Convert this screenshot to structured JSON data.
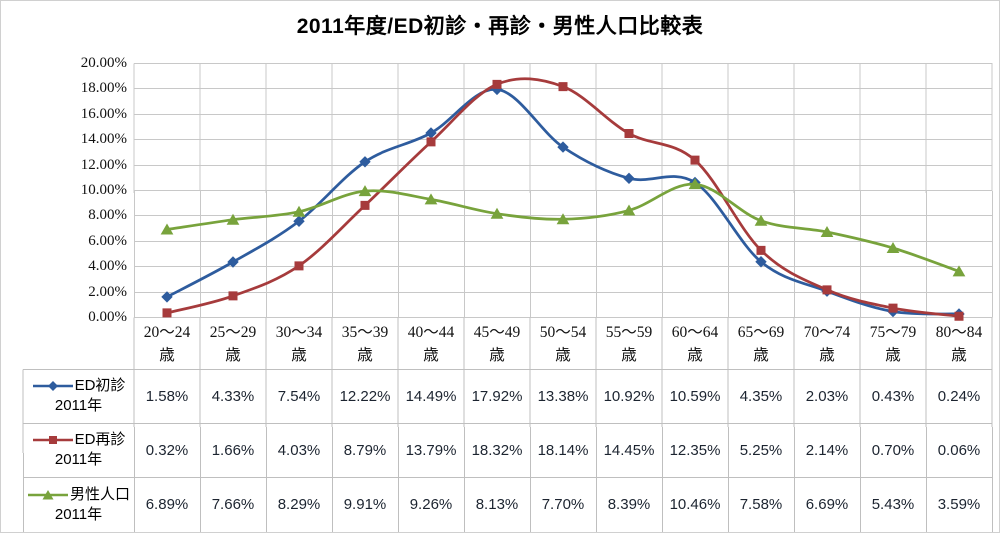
{
  "chart_data": {
    "type": "line",
    "smooth": true,
    "title": "2011年度/ED初診・再診・男性人口比較表",
    "categories": [
      "20〜24歳",
      "25〜29歳",
      "30〜34歳",
      "35〜39歳",
      "40〜44歳",
      "45〜49歳",
      "50〜54歳",
      "55〜59歳",
      "60〜64歳",
      "65〜69歳",
      "70〜74歳",
      "75〜79歳",
      "80〜84歳"
    ],
    "category_suffix": "歳",
    "y_axis": {
      "min": 0,
      "max": 20,
      "step": 2,
      "grid": true,
      "tick_labels": [
        "0.00%",
        "2.00%",
        "4.00%",
        "6.00%",
        "8.00%",
        "10.00%",
        "12.00%",
        "14.00%",
        "16.00%",
        "18.00%",
        "20.00%"
      ]
    },
    "legend_position": "table-left",
    "value_suffix": "%",
    "series": [
      {
        "name": "ED初診 2011年",
        "name_lines": [
          "ED初診",
          "2011年"
        ],
        "marker": "diamond",
        "color": "#2E5C9E",
        "values": [
          1.58,
          4.33,
          7.54,
          12.22,
          14.49,
          17.92,
          13.38,
          10.92,
          10.59,
          4.35,
          2.03,
          0.43,
          0.24
        ]
      },
      {
        "name": "ED再診 2011年",
        "name_lines": [
          "ED再診",
          "2011年"
        ],
        "marker": "square",
        "color": "#A63B3C",
        "values": [
          0.32,
          1.66,
          4.03,
          8.79,
          13.79,
          18.32,
          18.14,
          14.45,
          12.35,
          5.25,
          2.14,
          0.7,
          0.06
        ]
      },
      {
        "name": "男性人口 2011年",
        "name_lines": [
          "男性人口",
          "2011年"
        ],
        "marker": "triangle",
        "color": "#78A33C",
        "values": [
          6.89,
          7.66,
          8.29,
          9.91,
          9.26,
          8.13,
          7.7,
          8.39,
          10.46,
          7.58,
          6.69,
          5.43,
          3.59
        ]
      }
    ]
  },
  "colors": {
    "grid": "#C8C8C8",
    "table_border": "#BFBFBF",
    "background": "#FFFFFF",
    "text": "#000000"
  }
}
